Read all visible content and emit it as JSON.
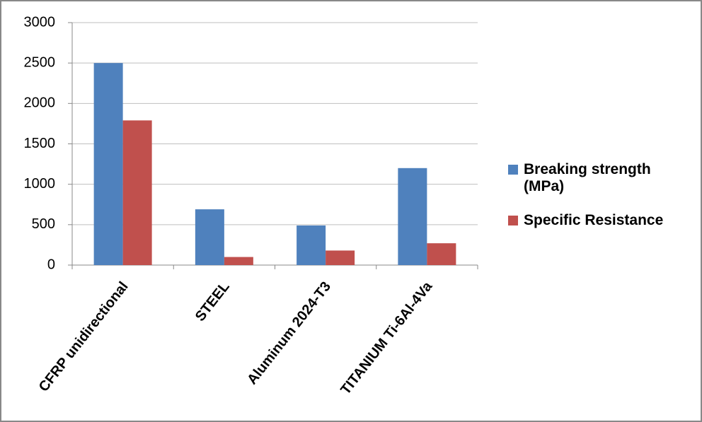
{
  "chart_data": {
    "type": "bar",
    "categories": [
      "CFRP unidirectional",
      "STEEL",
      "Aluminum 2024-T3",
      "TITANIUM Ti-6Al-4Va"
    ],
    "series": [
      {
        "name": "Breaking strength (MPa)",
        "color": "#4f81bd",
        "values": [
          2500,
          690,
          490,
          1200
        ]
      },
      {
        "name": "Specific Resistance",
        "color": "#c0504d",
        "values": [
          1790,
          100,
          180,
          270
        ]
      }
    ],
    "ylim": [
      0,
      3000
    ],
    "yticks": [
      0,
      500,
      1000,
      1500,
      2000,
      2500,
      3000
    ],
    "grid": true,
    "legend": "right"
  }
}
